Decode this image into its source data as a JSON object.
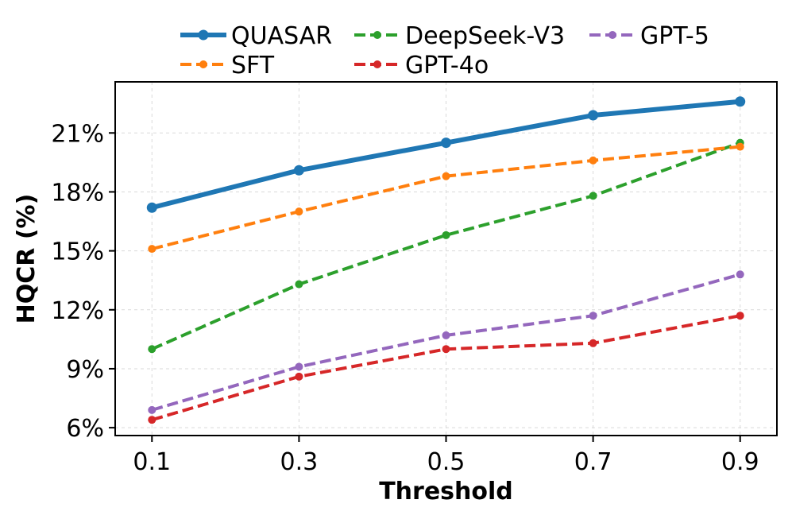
{
  "chart_data": {
    "type": "line",
    "xlabel": "Threshold",
    "ylabel": "HQCR (%)",
    "x": [
      0.1,
      0.3,
      0.5,
      0.7,
      0.9
    ],
    "x_tick_labels": [
      "0.1",
      "0.3",
      "0.5",
      "0.7",
      "0.9"
    ],
    "xlim": [
      0.05,
      0.95
    ],
    "ylim": [
      5.6,
      23.6
    ],
    "y_ticks": [
      6,
      9,
      12,
      15,
      18,
      21
    ],
    "y_tick_labels": [
      "6%",
      "9%",
      "12%",
      "15%",
      "18%",
      "21%"
    ],
    "grid": true,
    "legend_position": "top, above plot, 3 columns",
    "series": [
      {
        "name": "QUASAR",
        "color": "#1f77b4",
        "style": "solid",
        "values": [
          17.2,
          19.1,
          20.5,
          21.9,
          22.6
        ]
      },
      {
        "name": "SFT",
        "color": "#ff7f0e",
        "style": "dashed",
        "values": [
          15.1,
          17.0,
          18.8,
          19.6,
          20.3
        ]
      },
      {
        "name": "DeepSeek-V3",
        "color": "#2ca02c",
        "style": "dashed",
        "values": [
          10.0,
          13.3,
          15.8,
          17.8,
          20.5
        ]
      },
      {
        "name": "GPT-4o",
        "color": "#d62728",
        "style": "dashed",
        "values": [
          6.4,
          8.6,
          10.0,
          10.3,
          11.7
        ]
      },
      {
        "name": "GPT-5",
        "color": "#9467bd",
        "style": "dashed",
        "values": [
          6.9,
          9.1,
          10.7,
          11.7,
          13.8
        ]
      }
    ]
  }
}
